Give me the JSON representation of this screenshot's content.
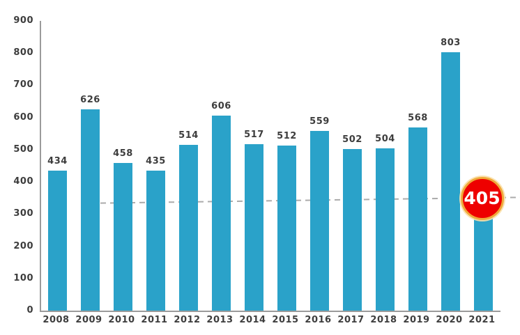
{
  "chart_data": {
    "type": "bar",
    "title": "",
    "xlabel": "",
    "ylabel": "",
    "categories": [
      "2008",
      "2009",
      "2010",
      "2011",
      "2012",
      "2013",
      "2014",
      "2015",
      "2016",
      "2017",
      "2018",
      "2019",
      "2020",
      "2021"
    ],
    "values": [
      434,
      626,
      458,
      435,
      514,
      606,
      517,
      512,
      559,
      502,
      504,
      568,
      803,
      405
    ],
    "ylim": [
      0,
      900
    ],
    "yticks": [
      0,
      100,
      200,
      300,
      400,
      500,
      600,
      700,
      800,
      900
    ],
    "grid": false,
    "legend": "none",
    "bar_color": "#2aa2c9",
    "label_color": "#3d3d3d",
    "axis_color": "#9b9b9b",
    "trendline": {
      "style": "dashed",
      "color": "#ababab",
      "start_value": 398,
      "end_value": 418
    },
    "highlight": {
      "category": "2021",
      "label": "405",
      "circle_color": "#ee0000",
      "ring_color": "#efa93b",
      "text_color": "#ffffff"
    }
  }
}
